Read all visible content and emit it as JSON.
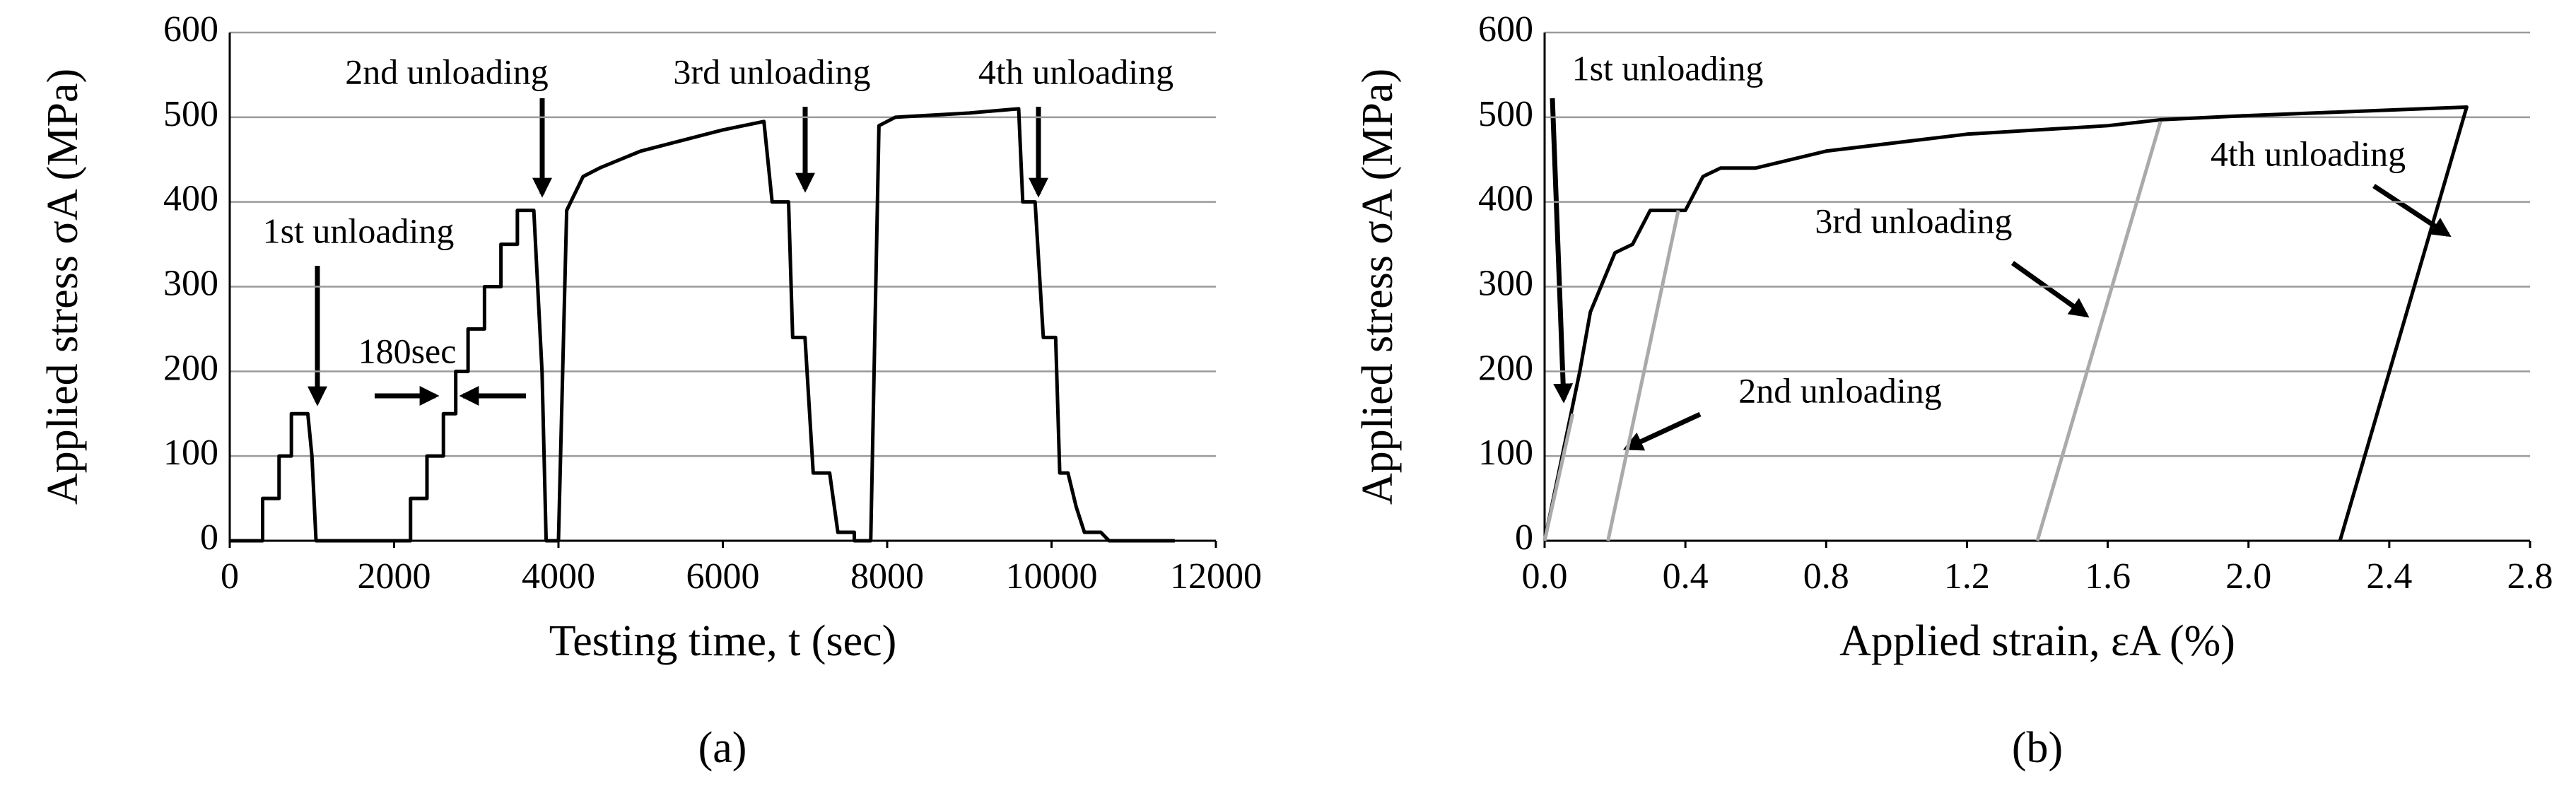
{
  "chart_data": [
    {
      "type": "line",
      "panel_label": "(a)",
      "xlabel": "Testing time, t (sec)",
      "ylabel": "Applied stress σA (MPa)",
      "xlim": [
        0,
        12000
      ],
      "xticks": [
        0,
        2000,
        4000,
        6000,
        8000,
        10000,
        12000
      ],
      "ylim": [
        0,
        600
      ],
      "yticks": [
        0,
        100,
        200,
        300,
        400,
        500,
        600
      ],
      "grid": true,
      "series": [
        {
          "color": "#000000",
          "x": [
            0,
            400,
            400,
            600,
            600,
            750,
            750,
            950,
            1000,
            1050,
            2200,
            2200,
            2400,
            2400,
            2600,
            2600,
            2750,
            2750,
            2900,
            2900,
            3100,
            3100,
            3300,
            3300,
            3500,
            3500,
            3700,
            3800,
            3850,
            4000,
            4100,
            4300,
            4500,
            5000,
            6000,
            6500,
            6600,
            6800,
            6850,
            7000,
            7100,
            7300,
            7400,
            7600,
            7600,
            7800,
            7900,
            8100,
            9000,
            9600,
            9650,
            9800,
            9900,
            10050,
            10100,
            10200,
            10300,
            10400,
            10600,
            10700,
            11500
          ],
          "values": [
            0,
            0,
            50,
            50,
            100,
            100,
            150,
            150,
            100,
            0,
            0,
            50,
            50,
            100,
            100,
            150,
            150,
            200,
            200,
            250,
            250,
            300,
            300,
            350,
            350,
            390,
            390,
            200,
            0,
            0,
            390,
            430,
            440,
            460,
            485,
            495,
            400,
            400,
            240,
            240,
            80,
            80,
            10,
            10,
            0,
            0,
            490,
            500,
            505,
            510,
            400,
            400,
            240,
            240,
            80,
            80,
            40,
            10,
            10,
            0,
            0
          ]
        }
      ],
      "annotations": [
        "1st unloading",
        "2nd unloading",
        "3rd unloading",
        "4th unloading",
        "180sec"
      ]
    },
    {
      "type": "line",
      "panel_label": "(b)",
      "xlabel": "Applied strain, εA (%)",
      "ylabel": "Applied stress σA (MPa)",
      "xlim": [
        0,
        2.8
      ],
      "xticks": [
        {
          "value": 0,
          "label": "0.0"
        },
        0.4,
        0.8,
        1.2,
        1.6,
        {
          "value": 2,
          "label": "2.0"
        },
        2.4,
        2.8
      ],
      "ylim": [
        0,
        600
      ],
      "yticks": [
        0,
        100,
        200,
        300,
        400,
        500,
        600
      ],
      "grid": true,
      "series": [
        {
          "color": "#000000",
          "x": [
            0,
            0.05,
            0.1,
            0.13,
            0.15,
            0.2,
            0.25,
            0.3,
            0.4,
            0.45,
            0.5,
            0.6,
            0.8,
            1.2,
            1.6,
            1.75,
            2.0,
            2.62,
            2.26
          ],
          "values": [
            0,
            100,
            200,
            270,
            290,
            340,
            350,
            390,
            390,
            430,
            440,
            440,
            460,
            480,
            490,
            497,
            502,
            512,
            0
          ]
        },
        {
          "color": "#aaaaaa",
          "x": [
            0.38,
            0.18
          ],
          "values": [
            390,
            0
          ]
        },
        {
          "color": "#aaaaaa",
          "x": [
            1.75,
            1.4
          ],
          "values": [
            495,
            0
          ]
        },
        {
          "color": "#aaaaaa",
          "x": [
            0.08,
            0
          ],
          "values": [
            150,
            0
          ]
        }
      ],
      "annotations": [
        "1st unloading",
        "2nd unloading",
        "3rd unloading",
        "4th unloading"
      ]
    }
  ]
}
